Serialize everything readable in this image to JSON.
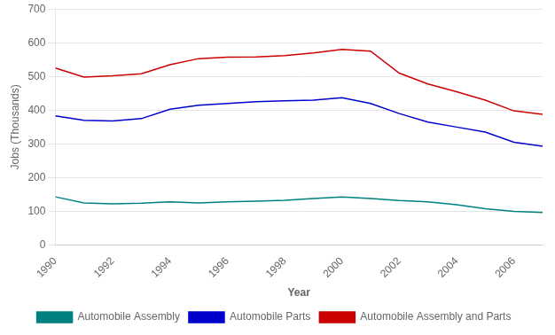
{
  "chart_data": {
    "type": "line",
    "x": [
      1990,
      1991,
      1992,
      1993,
      1994,
      1995,
      1996,
      1997,
      1998,
      1999,
      2000,
      2001,
      2002,
      2003,
      2004,
      2005,
      2006,
      2007
    ],
    "series": [
      {
        "name": "Automobile Assembly",
        "color": "#008080",
        "values": [
          143,
          125,
          122,
          124,
          128,
          125,
          128,
          130,
          133,
          138,
          143,
          138,
          132,
          128,
          120,
          108,
          100,
          97
        ]
      },
      {
        "name": "Automobile Parts",
        "color": "#0000CD",
        "values": [
          383,
          370,
          368,
          375,
          403,
          415,
          420,
          425,
          428,
          430,
          437,
          420,
          390,
          365,
          350,
          335,
          305,
          293
        ]
      },
      {
        "name": "Automobile Assembly and Parts",
        "color": "#CC0000",
        "values": [
          525,
          498,
          502,
          508,
          535,
          553,
          557,
          558,
          562,
          570,
          580,
          575,
          510,
          478,
          455,
          430,
          398,
          388
        ]
      }
    ],
    "xlabel": "Year",
    "ylabel": "Jobs (Thousands)",
    "xlim": [
      1990,
      2007
    ],
    "xticks": [
      1990,
      1992,
      1994,
      1996,
      1998,
      2000,
      2002,
      2004,
      2006
    ],
    "ylim": [
      0,
      700
    ],
    "yticks": [
      0,
      100,
      200,
      300,
      400,
      500,
      600,
      700
    ],
    "grid": true,
    "legend": "bottom"
  }
}
